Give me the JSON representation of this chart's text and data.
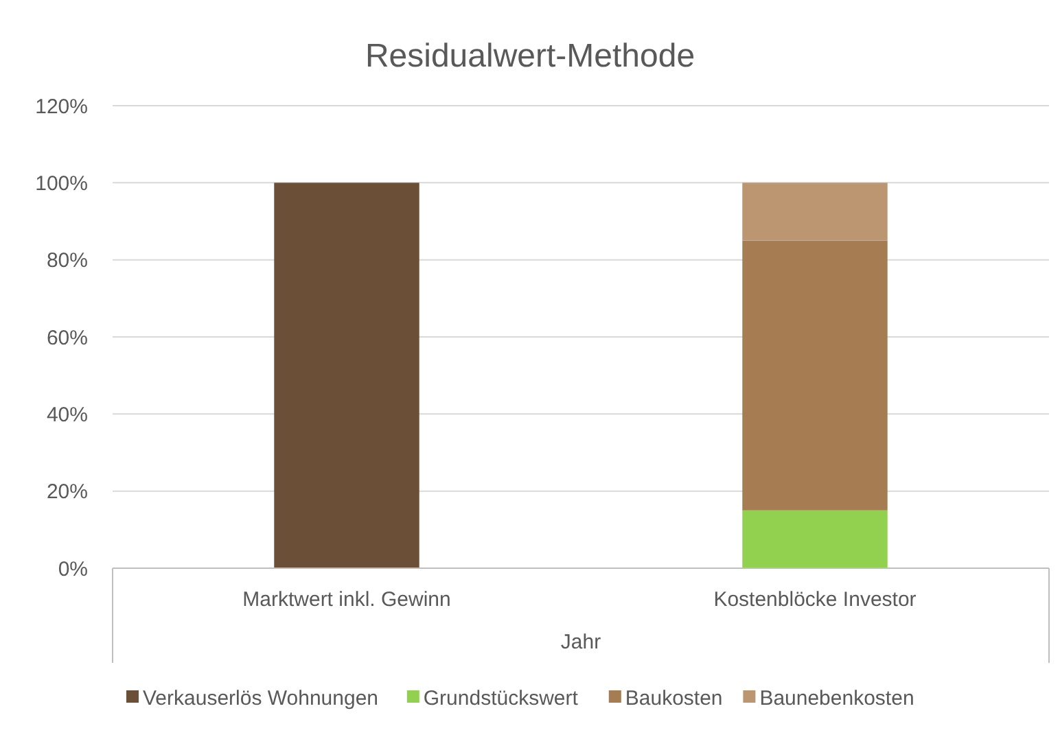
{
  "chart_data": {
    "type": "bar",
    "title": "Residualwert-Methode",
    "xlabel": "Jahr",
    "categories": [
      "Marktwert inkl. Gewinn",
      "Kostenblöcke Investor"
    ],
    "stacked": true,
    "series": [
      {
        "name": "Verkauserlös Wohnungen",
        "color": "#6b4f36",
        "values": [
          100,
          null
        ]
      },
      {
        "name": "Grundstückswert",
        "color": "#92d050",
        "values": [
          null,
          15
        ]
      },
      {
        "name": "Baukosten",
        "color": "#a67c52",
        "values": [
          null,
          70
        ]
      },
      {
        "name": "Baunebenkosten",
        "color": "#bc9571",
        "values": [
          null,
          15
        ]
      }
    ],
    "ylim": [
      0,
      120
    ],
    "yticks": [
      {
        "value": 0,
        "label": "0%"
      },
      {
        "value": 20,
        "label": "20%"
      },
      {
        "value": 40,
        "label": "40%"
      },
      {
        "value": 60,
        "label": "60%"
      },
      {
        "value": 80,
        "label": "80%"
      },
      {
        "value": 100,
        "label": "100%"
      },
      {
        "value": 120,
        "label": "120%"
      }
    ],
    "grid": "y",
    "legend": "bottom"
  }
}
